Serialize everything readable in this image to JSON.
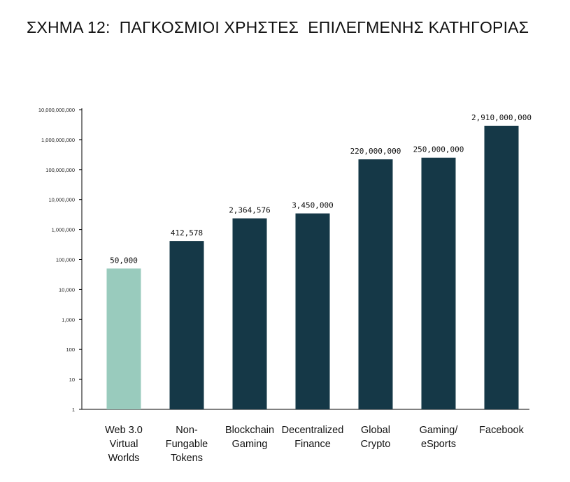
{
  "chart_data": {
    "type": "bar",
    "title": "ΣΧΗΜΑ 12:  ΠΑΓΚΟΣΜΙΟΙ ΧΡΗΣΤΕΣ  ΕΠΙΛΕΓΜΕΝΗΣ ΚΑΤΗΓΟΡΙΑΣ",
    "yscale": "log",
    "ylim": [
      1,
      10000000000
    ],
    "ytick_labels": [
      "1",
      "10",
      "100",
      "1,000",
      "10,000",
      "100,000",
      "1,000,000",
      "10,000,000",
      "100,000,000",
      "1,000,000,000",
      "10,000,000,000"
    ],
    "categories": [
      [
        "Web 3.0",
        "Virtual",
        "Worlds"
      ],
      [
        "Non-",
        "Fungable",
        "Tokens"
      ],
      [
        "Blockchain",
        "Gaming"
      ],
      [
        "Decentralized",
        "Finance"
      ],
      [
        "Global",
        "Crypto"
      ],
      [
        "Gaming/",
        "eSports"
      ],
      [
        "Facebook"
      ]
    ],
    "values": [
      50000,
      412578,
      2364576,
      3450000,
      220000000,
      250000000,
      2910000000
    ],
    "data_labels": [
      "50,000",
      "412,578",
      "2,364,576",
      "3,450,000",
      "220,000,000",
      "250,000,000",
      "2,910,000,000"
    ],
    "colors": [
      "#99cbbd",
      "#153847",
      "#153847",
      "#153847",
      "#153847",
      "#153847",
      "#153847"
    ],
    "grid": false,
    "legend": "none"
  }
}
